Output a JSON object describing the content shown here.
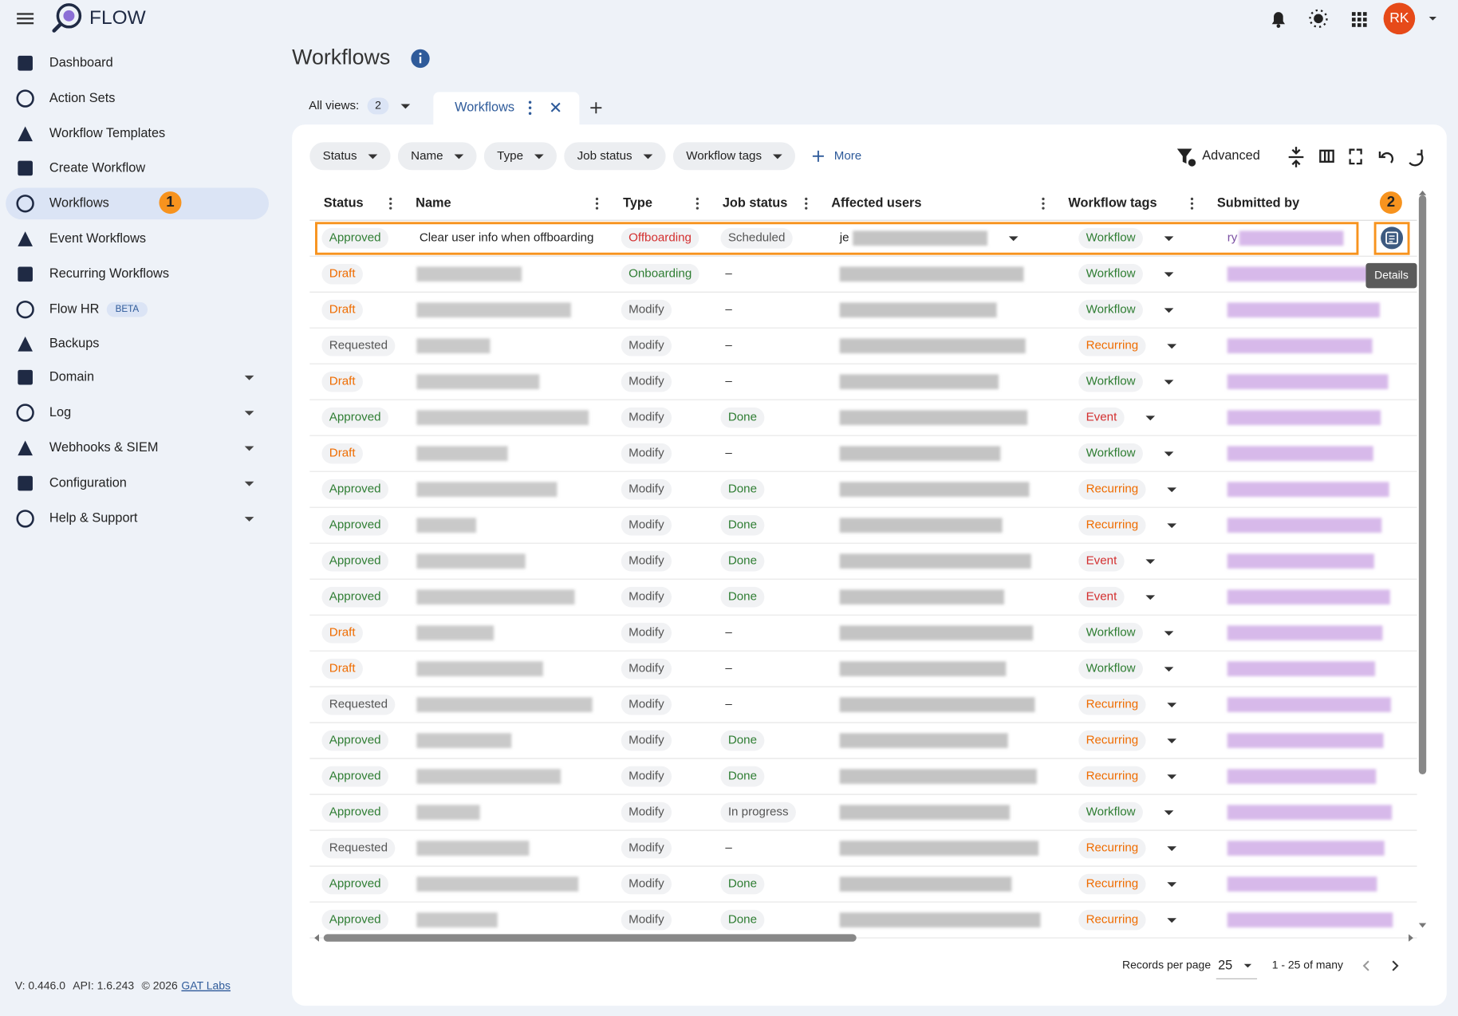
{
  "app": {
    "brand": "FLOW"
  },
  "header": {
    "avatar": "RK"
  },
  "sidebar": {
    "items": [
      {
        "label": "Dashboard"
      },
      {
        "label": "Action Sets"
      },
      {
        "label": "Workflow Templates"
      },
      {
        "label": "Create Workflow"
      },
      {
        "label": "Workflows",
        "active": true
      },
      {
        "label": "Event Workflows"
      },
      {
        "label": "Recurring Workflows"
      },
      {
        "label": "Flow HR",
        "badge": "BETA"
      },
      {
        "label": "Backups"
      },
      {
        "label": "Domain",
        "expandable": true
      },
      {
        "label": "Log",
        "expandable": true
      },
      {
        "label": "Webhooks & SIEM",
        "expandable": true
      },
      {
        "label": "Configuration",
        "expandable": true
      },
      {
        "label": "Help & Support",
        "expandable": true
      }
    ],
    "footer": {
      "version": "V: 0.446.0",
      "api": "API: 1.6.243",
      "copyright": "© 2026",
      "link": "GAT Labs"
    }
  },
  "page": {
    "title": "Workflows"
  },
  "views": {
    "label": "All views:",
    "count": 2,
    "tab": "Workflows"
  },
  "filters": [
    "Status",
    "Name",
    "Type",
    "Job status",
    "Workflow tags"
  ],
  "more": "More",
  "advanced": "Advanced",
  "table": {
    "columns": [
      "Status",
      "Name",
      "Type",
      "Job status",
      "Affected users",
      "Workflow tags",
      "Submitted by"
    ],
    "rows": [
      {
        "status": "Approved",
        "name": "Clear user info when offboarding",
        "type": "Offboarding",
        "job": "Scheduled",
        "affected": "je",
        "tag": "Workflow",
        "submitted": "ry"
      },
      {
        "status": "Draft",
        "type": "Onboarding",
        "job": "–",
        "tag": "Workflow"
      },
      {
        "status": "Draft",
        "type": "Modify",
        "job": "–",
        "tag": "Workflow"
      },
      {
        "status": "Requested",
        "type": "Modify",
        "job": "–",
        "tag": "Recurring"
      },
      {
        "status": "Draft",
        "type": "Modify",
        "job": "–",
        "tag": "Workflow"
      },
      {
        "status": "Approved",
        "type": "Modify",
        "job": "Done",
        "tag": "Event"
      },
      {
        "status": "Draft",
        "type": "Modify",
        "job": "–",
        "tag": "Workflow"
      },
      {
        "status": "Approved",
        "type": "Modify",
        "job": "Done",
        "tag": "Recurring"
      },
      {
        "status": "Approved",
        "type": "Modify",
        "job": "Done",
        "tag": "Recurring"
      },
      {
        "status": "Approved",
        "type": "Modify",
        "job": "Done",
        "tag": "Event"
      },
      {
        "status": "Approved",
        "type": "Modify",
        "job": "Done",
        "tag": "Event"
      },
      {
        "status": "Draft",
        "type": "Modify",
        "job": "–",
        "tag": "Workflow"
      },
      {
        "status": "Draft",
        "type": "Modify",
        "job": "–",
        "tag": "Workflow"
      },
      {
        "status": "Requested",
        "type": "Modify",
        "job": "–",
        "tag": "Recurring"
      },
      {
        "status": "Approved",
        "type": "Modify",
        "job": "Done",
        "tag": "Recurring"
      },
      {
        "status": "Approved",
        "type": "Modify",
        "job": "Done",
        "tag": "Recurring"
      },
      {
        "status": "Approved",
        "type": "Modify",
        "job": "In progress",
        "tag": "Workflow"
      },
      {
        "status": "Requested",
        "type": "Modify",
        "job": "–",
        "tag": "Recurring"
      },
      {
        "status": "Approved",
        "type": "Modify",
        "job": "Done",
        "tag": "Recurring"
      },
      {
        "status": "Approved",
        "type": "Modify",
        "job": "Done",
        "tag": "Recurring"
      }
    ]
  },
  "tooltip": "Details",
  "annotations": [
    "1",
    "2"
  ],
  "pagination": {
    "label": "Records per page",
    "per_page": 25,
    "range": "1 - 25 of many"
  }
}
